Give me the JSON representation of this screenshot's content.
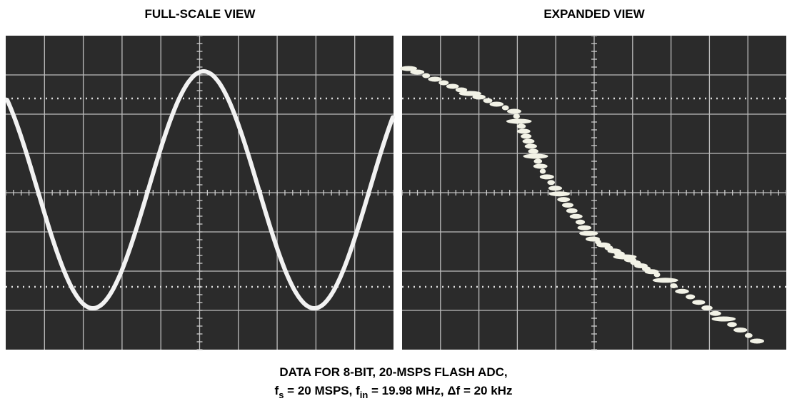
{
  "panels": [
    {
      "title": "FULL-SCALE VIEW"
    },
    {
      "title": "EXPANDED VIEW"
    }
  ],
  "caption": {
    "line1": "DATA FOR 8-BIT, 20-MSPS FLASH ADC,",
    "line2": [
      "f",
      "s",
      " = 20 MSPS, f",
      "in",
      " = 19.98 MHz, Δf = 20 kHz"
    ]
  }
}
